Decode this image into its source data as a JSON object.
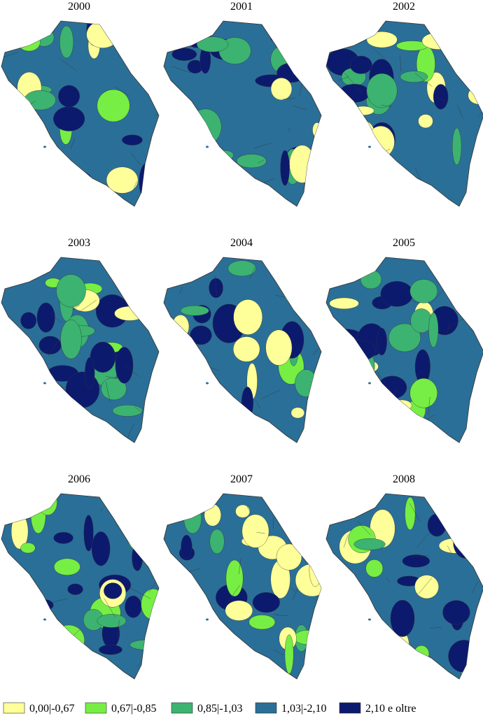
{
  "maps": [
    {
      "title": "2000"
    },
    {
      "title": "2001"
    },
    {
      "title": "2002"
    },
    {
      "title": "2003"
    },
    {
      "title": "2004"
    },
    {
      "title": "2005"
    },
    {
      "title": "2006"
    },
    {
      "title": "2007"
    },
    {
      "title": "2008"
    }
  ],
  "legend": [
    {
      "label": "0,00|-0,67",
      "color": "#ffff99"
    },
    {
      "label": "0,67|-0,85",
      "color": "#77ee44"
    },
    {
      "label": "0,85|-1,03",
      "color": "#3cb371"
    },
    {
      "label": "1,03|-2,10",
      "color": "#2a6f97"
    },
    {
      "label": "2,10 e oltre",
      "color": "#0c1a6e"
    }
  ]
}
